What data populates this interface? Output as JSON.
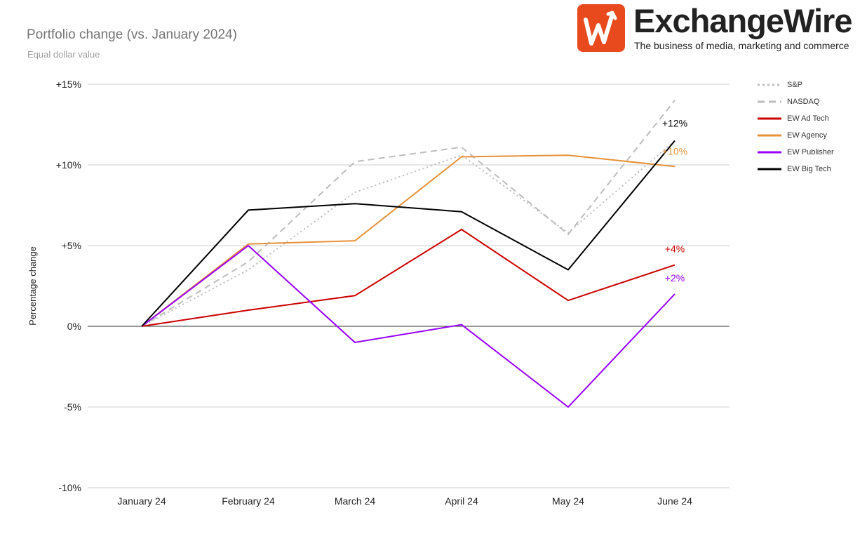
{
  "header": {
    "title": "Portfolio change (vs. January 2024)",
    "subtitle": "Equal dollar value"
  },
  "logo": {
    "name": "ExchangeWire",
    "tagline": "The business of media, marketing and commerce",
    "color": "#e8491d"
  },
  "chart_data": {
    "type": "line",
    "title": "Portfolio change (vs. January 2024)",
    "subtitle": "Equal dollar value",
    "xlabel": "",
    "ylabel": "Percentage change",
    "categories": [
      "January 24",
      "February 24",
      "March 24",
      "April 24",
      "May 24",
      "June 24"
    ],
    "ylim": [
      -10,
      15
    ],
    "yticks": [
      15,
      10,
      5,
      0,
      -5,
      -10
    ],
    "ytick_labels": [
      "+15%",
      "+10%",
      "+5%",
      "0%",
      "-5%",
      "-10%"
    ],
    "grid": true,
    "legend_position": "right",
    "series": [
      {
        "name": "S&P",
        "color": "#bdbdbd",
        "dash": "dotted",
        "values": [
          0,
          3.5,
          8.3,
          10.6,
          5.8,
          11.5
        ],
        "end_label": ""
      },
      {
        "name": "NASDAQ",
        "color": "#bdbdbd",
        "dash": "dashed",
        "values": [
          0,
          4.0,
          10.2,
          11.1,
          5.7,
          14.0
        ],
        "end_label": ""
      },
      {
        "name": "EW Ad Tech",
        "color": "#cc0000",
        "dash": "solid",
        "values": [
          0,
          1.0,
          1.9,
          6.0,
          1.6,
          3.8
        ],
        "end_label": "+4%"
      },
      {
        "name": "EW Agency",
        "color": "#e69138",
        "dash": "solid",
        "values": [
          0,
          5.1,
          5.3,
          10.5,
          10.6,
          9.9
        ],
        "end_label": "+10%"
      },
      {
        "name": "EW Publisher",
        "color": "#9900ff",
        "dash": "solid",
        "values": [
          0,
          5.0,
          -1.0,
          0.1,
          -5.0,
          2.0
        ],
        "end_label": "+2%"
      },
      {
        "name": "EW Big Tech",
        "color": "#000000",
        "dash": "solid",
        "values": [
          0,
          7.2,
          7.6,
          7.1,
          3.5,
          11.5
        ],
        "end_label": "+12%"
      }
    ]
  }
}
